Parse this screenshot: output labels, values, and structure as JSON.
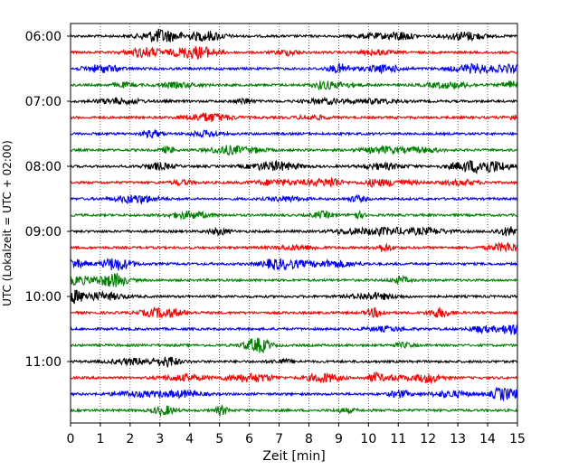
{
  "chart_data": {
    "type": "line",
    "xlabel": "Zeit  [min]",
    "ylabel": "UTC (Lokalzeit = UTC + 02:00)",
    "xlim": [
      0,
      15
    ],
    "x_ticks": [
      "0",
      "1",
      "2",
      "3",
      "4",
      "5",
      "6",
      "7",
      "8",
      "9",
      "10",
      "11",
      "12",
      "13",
      "14",
      "15"
    ],
    "y_ticks": [
      "06:00",
      "07:00",
      "08:00",
      "09:00",
      "10:00",
      "11:00"
    ],
    "grid": "vertical dotted",
    "trace_interval_min": 15,
    "trace_colors": [
      "#000000",
      "#ff0000",
      "#0000ff",
      "#008000"
    ],
    "traces": [
      {
        "start": "06:00",
        "color": "#000000"
      },
      {
        "start": "06:15",
        "color": "#ff0000"
      },
      {
        "start": "06:30",
        "color": "#0000ff"
      },
      {
        "start": "06:45",
        "color": "#008000"
      },
      {
        "start": "07:00",
        "color": "#000000"
      },
      {
        "start": "07:15",
        "color": "#ff0000"
      },
      {
        "start": "07:30",
        "color": "#0000ff"
      },
      {
        "start": "07:45",
        "color": "#008000"
      },
      {
        "start": "08:00",
        "color": "#000000"
      },
      {
        "start": "08:15",
        "color": "#ff0000"
      },
      {
        "start": "08:30",
        "color": "#0000ff"
      },
      {
        "start": "08:45",
        "color": "#008000"
      },
      {
        "start": "09:00",
        "color": "#000000"
      },
      {
        "start": "09:15",
        "color": "#ff0000"
      },
      {
        "start": "09:30",
        "color": "#0000ff"
      },
      {
        "start": "09:45",
        "color": "#008000"
      },
      {
        "start": "10:00",
        "color": "#000000"
      },
      {
        "start": "10:15",
        "color": "#ff0000"
      },
      {
        "start": "10:30",
        "color": "#0000ff"
      },
      {
        "start": "10:45",
        "color": "#008000"
      },
      {
        "start": "11:00",
        "color": "#000000"
      },
      {
        "start": "11:15",
        "color": "#ff0000"
      },
      {
        "start": "11:30",
        "color": "#0000ff"
      },
      {
        "start": "11:45",
        "color": "#008000"
      }
    ]
  }
}
